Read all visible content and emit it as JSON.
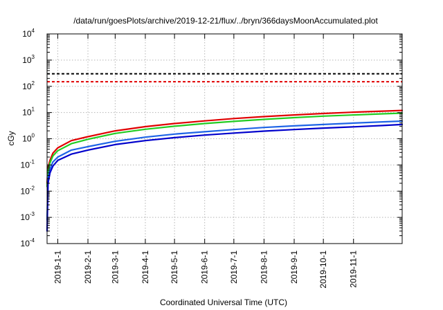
{
  "chart_data": {
    "type": "line",
    "title": "/data/run/goesPlots/archive/2019-12-21/flux/../bryn/366daysMoonAccumulated.plot",
    "xlabel": "Coordinated Universal Time (UTC)",
    "ylabel": "cGy",
    "xlim": [
      "2018-12-21",
      "2019-12-21"
    ],
    "ylim": [
      0.0001,
      10000
    ],
    "yscale": "log",
    "grid": true,
    "x_ticks": [
      "2019-1-1",
      "2019-2-1",
      "2019-3-1",
      "2019-4-1",
      "2019-5-1",
      "2019-6-1",
      "2019-7-1",
      "2019-8-1",
      "2019-9-1",
      "2019-10-1",
      "2019-11-1"
    ],
    "y_ticks": [
      {
        "value": 0.0001,
        "base": "10",
        "exp": "-4"
      },
      {
        "value": 0.001,
        "base": "10",
        "exp": "-3"
      },
      {
        "value": 0.01,
        "base": "10",
        "exp": "-2"
      },
      {
        "value": 0.1,
        "base": "10",
        "exp": "-1"
      },
      {
        "value": 1,
        "base": "10",
        "exp": "0"
      },
      {
        "value": 10,
        "base": "10",
        "exp": "1"
      },
      {
        "value": 100,
        "base": "10",
        "exp": "2"
      },
      {
        "value": 1000,
        "base": "10",
        "exp": "3"
      },
      {
        "value": 10000,
        "base": "10",
        "exp": "4"
      }
    ],
    "hlines": [
      {
        "value": 300,
        "color": "#000000",
        "style": "dashed"
      },
      {
        "value": 150,
        "color": "#e00000",
        "style": "dashed"
      }
    ],
    "series": [
      {
        "color": "#e00000",
        "x": [
          "2018-12-21",
          "2018-12-22",
          "2018-12-24",
          "2018-12-27",
          "2019-01-01",
          "2019-01-15",
          "2019-02-01",
          "2019-03-01",
          "2019-04-01",
          "2019-05-01",
          "2019-06-01",
          "2019-07-01",
          "2019-08-01",
          "2019-09-01",
          "2019-10-01",
          "2019-11-01",
          "2019-12-01",
          "2019-12-21"
        ],
        "y": [
          0.02,
          0.08,
          0.15,
          0.28,
          0.45,
          0.85,
          1.2,
          2.0,
          2.9,
          3.8,
          4.8,
          5.9,
          7.0,
          8.1,
          9.2,
          10.3,
          11.3,
          12.0
        ]
      },
      {
        "color": "#22cc22",
        "x": [
          "2018-12-21",
          "2018-12-22",
          "2018-12-24",
          "2018-12-27",
          "2019-01-01",
          "2019-01-15",
          "2019-02-01",
          "2019-03-01",
          "2019-04-01",
          "2019-05-01",
          "2019-06-01",
          "2019-07-01",
          "2019-08-01",
          "2019-09-01",
          "2019-10-01",
          "2019-11-01",
          "2019-12-01",
          "2019-12-21"
        ],
        "y": [
          0.015,
          0.06,
          0.12,
          0.22,
          0.35,
          0.65,
          0.95,
          1.6,
          2.3,
          3.0,
          3.8,
          4.6,
          5.5,
          6.4,
          7.3,
          8.1,
          8.9,
          9.5
        ]
      },
      {
        "color": "#1e64e6",
        "x": [
          "2018-12-21",
          "2018-12-22",
          "2018-12-24",
          "2018-12-27",
          "2019-01-01",
          "2019-01-15",
          "2019-02-01",
          "2019-03-01",
          "2019-04-01",
          "2019-05-01",
          "2019-06-01",
          "2019-07-01",
          "2019-08-01",
          "2019-09-01",
          "2019-10-01",
          "2019-11-01",
          "2019-12-01",
          "2019-12-21"
        ],
        "y": [
          0.0008,
          0.03,
          0.07,
          0.13,
          0.2,
          0.37,
          0.5,
          0.8,
          1.15,
          1.5,
          1.85,
          2.25,
          2.7,
          3.1,
          3.5,
          3.95,
          4.4,
          4.7
        ]
      },
      {
        "color": "#0000cc",
        "x": [
          "2018-12-21",
          "2018-12-22",
          "2018-12-24",
          "2018-12-27",
          "2019-01-01",
          "2019-01-15",
          "2019-02-01",
          "2019-03-01",
          "2019-04-01",
          "2019-05-01",
          "2019-06-01",
          "2019-07-01",
          "2019-08-01",
          "2019-09-01",
          "2019-10-01",
          "2019-11-01",
          "2019-12-01",
          "2019-12-21"
        ],
        "y": [
          0.0003,
          0.02,
          0.05,
          0.09,
          0.15,
          0.26,
          0.37,
          0.6,
          0.85,
          1.1,
          1.38,
          1.65,
          1.95,
          2.25,
          2.55,
          2.85,
          3.2,
          3.5
        ]
      }
    ]
  }
}
